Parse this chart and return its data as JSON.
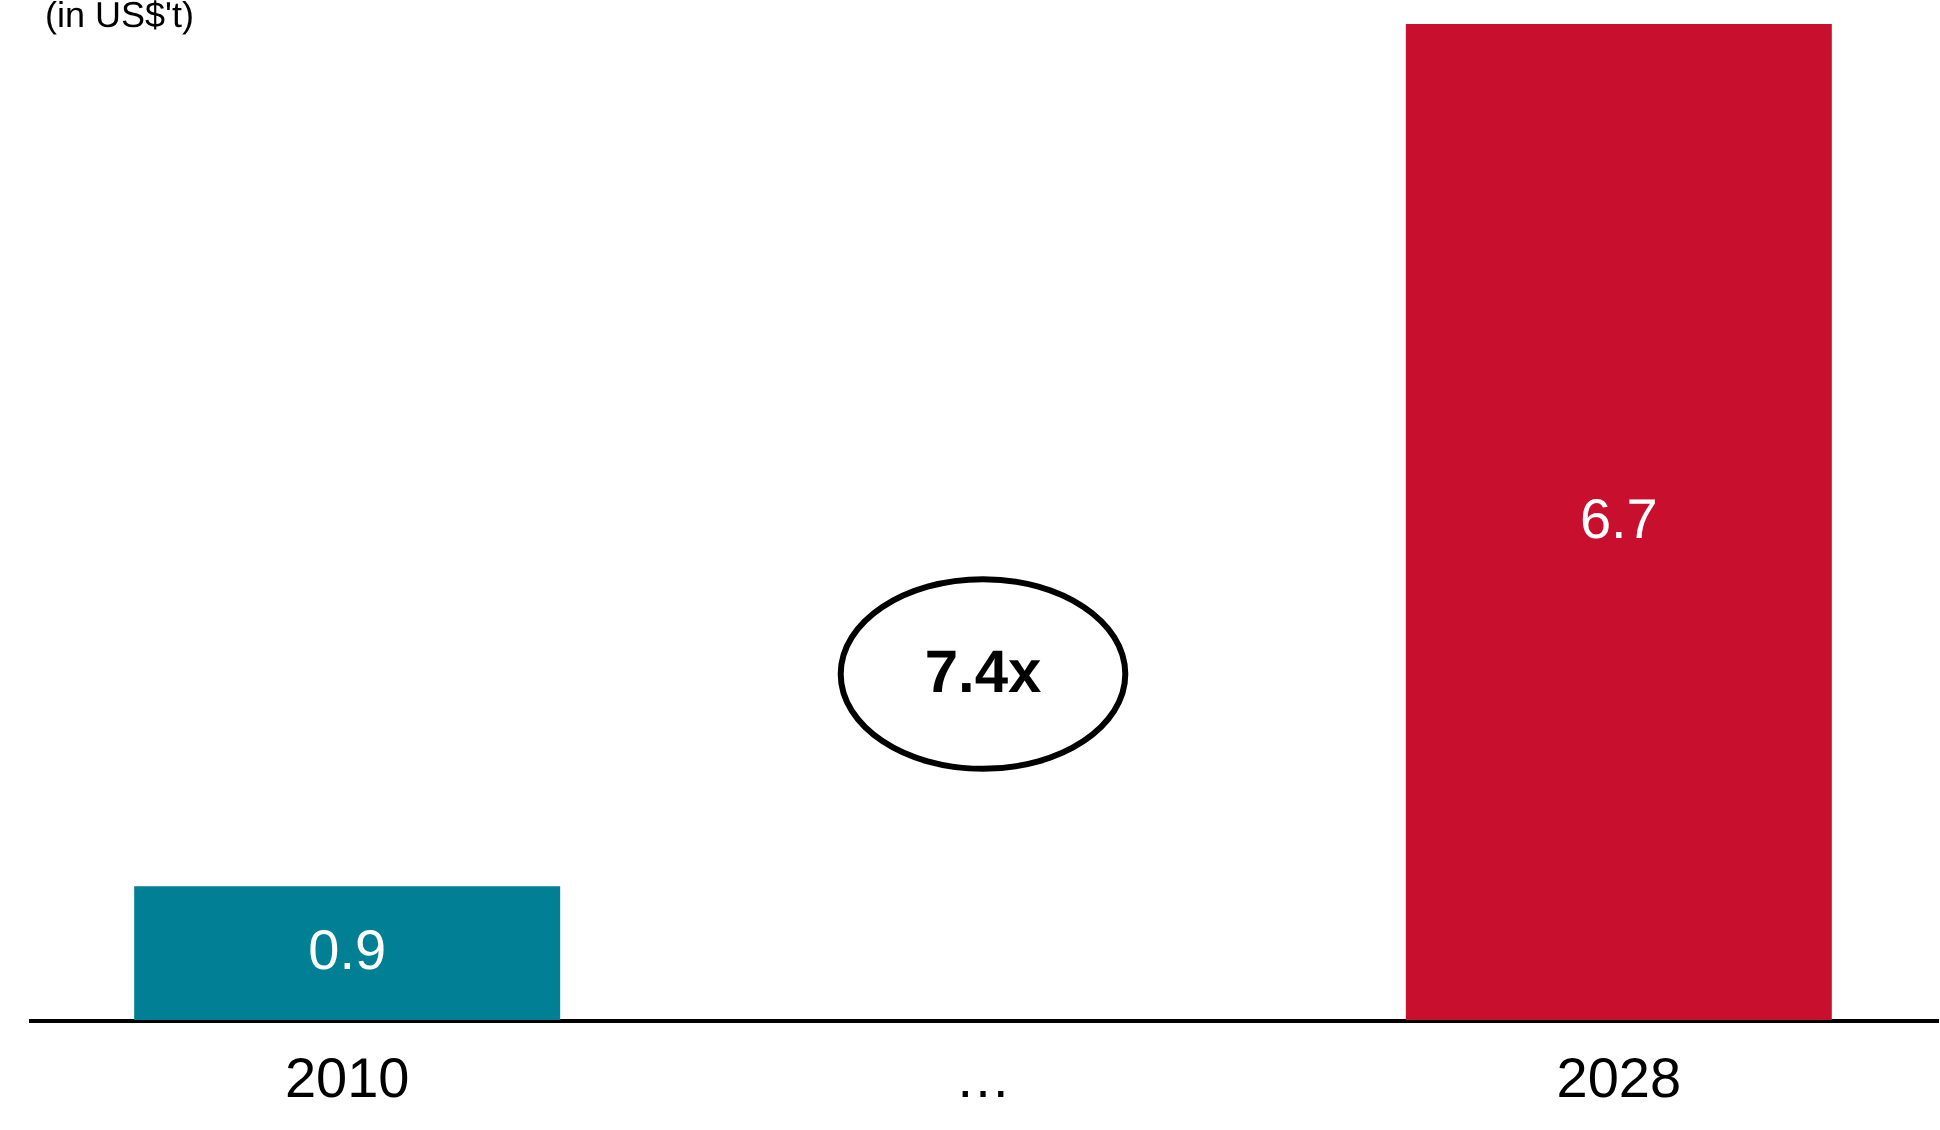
{
  "chart_data": {
    "type": "bar",
    "ylabel": "(in US$'t)",
    "categories": [
      "2010",
      "…",
      "2028"
    ],
    "values": [
      0.9,
      null,
      6.7
    ],
    "colors": [
      "#007f95",
      "#9a9a9a",
      "#c8102e"
    ],
    "ylim": [
      0,
      6.7
    ],
    "data_labels": true,
    "tick_labels": "x",
    "grid": false,
    "annotations": [
      "7.4x"
    ]
  }
}
